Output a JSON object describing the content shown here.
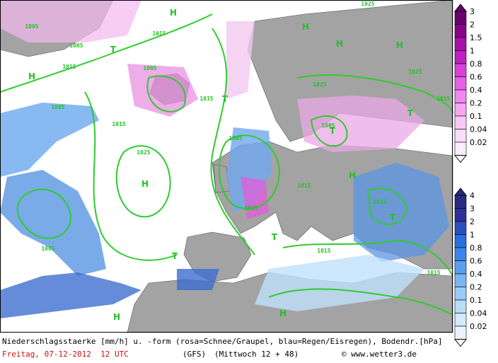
{
  "legend_snow": {
    "labels": [
      "3",
      "2",
      "1.5",
      "1",
      "0.8",
      "0.6",
      "0.4",
      "0.2",
      "0.1",
      "0.04",
      "0.02"
    ]
  },
  "legend_rain": {
    "labels": [
      "4",
      "3",
      "2",
      "1",
      "0.8",
      "0.6",
      "0.4",
      "0.2",
      "0.1",
      "0.04",
      "0.02"
    ]
  },
  "map": {
    "highs": [
      "H",
      "H",
      "H",
      "H",
      "H",
      "H",
      "H",
      "H",
      "H"
    ],
    "lows": [
      "T",
      "T",
      "T",
      "T",
      "T",
      "T",
      "T"
    ],
    "isobars": [
      "1005",
      "1005",
      "1015",
      "1015",
      "1005",
      "1015",
      "1025",
      "1025",
      "1025",
      "1015",
      "1005",
      "1015",
      "1025",
      "1005",
      "1005",
      "1015",
      "1005",
      "1015",
      "1025",
      "1005",
      "1015"
    ]
  },
  "footer": {
    "description": "Niederschlagsstaerke [mm/h] u. -form (rosa=Schnee/Graupel, blau=Regen/Eisregen), Bodendr.[hPa]",
    "date": "Freitag, 07-12-2012  12 UTC",
    "model": "(GFS)",
    "run": "(Mittwoch 12 + 48)",
    "source": "© www.wetter3.de"
  }
}
